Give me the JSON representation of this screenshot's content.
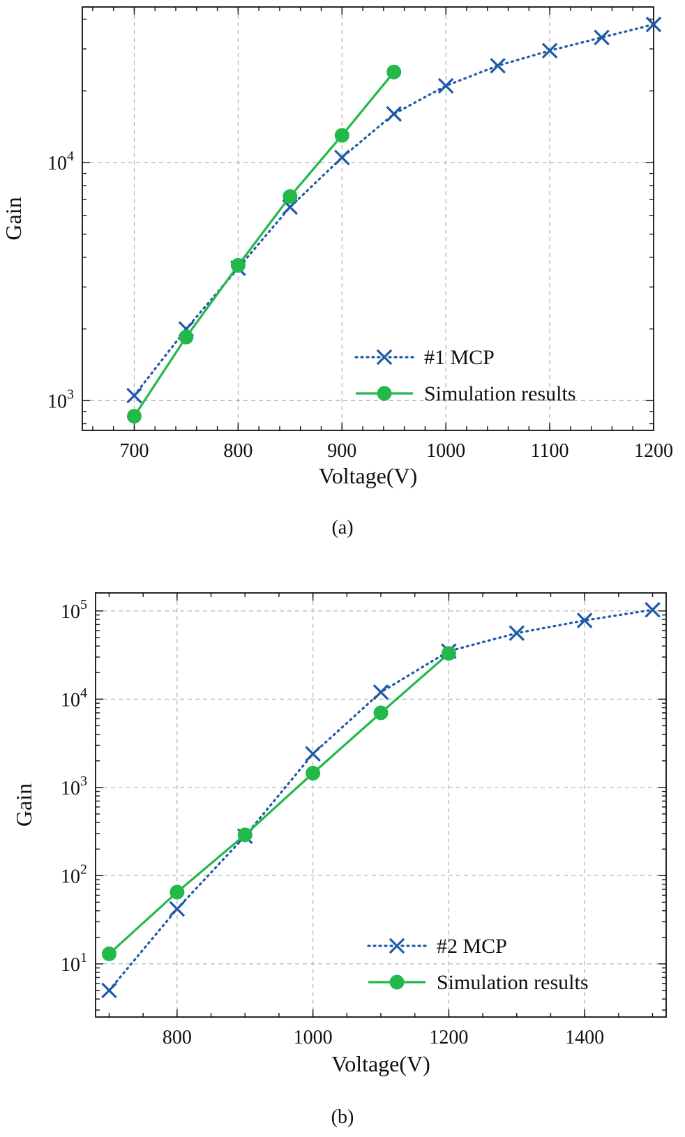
{
  "colors": {
    "mcp": "#1f5aa6",
    "sim": "#22b84a",
    "grid": "#b0b0b0",
    "axis": "#111111"
  },
  "chart_data": [
    {
      "type": "line",
      "caption": "(a)",
      "xlabel": "Voltage(V)",
      "ylabel": "Gain",
      "yscale": "log",
      "xlim": [
        650,
        1200
      ],
      "ylim": [
        750,
        45000
      ],
      "xticks": [
        700,
        800,
        900,
        1000,
        1100,
        1200
      ],
      "yticks": [
        {
          "value": 1000,
          "base": "10",
          "exp": "3"
        },
        {
          "value": 10000,
          "base": "10",
          "exp": "4"
        }
      ],
      "legend": "lower-right",
      "series": [
        {
          "name": "#1 MCP",
          "marker": "x",
          "style": "dotted",
          "color": "#1f5aa6",
          "x": [
            700,
            750,
            800,
            850,
            900,
            950,
            1000,
            1050,
            1100,
            1150,
            1200
          ],
          "y": [
            1050,
            2000,
            3600,
            6500,
            10500,
            16000,
            21000,
            25500,
            29500,
            33500,
            38000
          ]
        },
        {
          "name": "Simulation results",
          "marker": "o",
          "style": "solid",
          "color": "#22b84a",
          "x": [
            700,
            750,
            800,
            850,
            900,
            950
          ],
          "y": [
            860,
            1850,
            3700,
            7200,
            13000,
            24000
          ]
        }
      ]
    },
    {
      "type": "line",
      "caption": "(b)",
      "xlabel": "Voltage(V)",
      "ylabel": "Gain",
      "yscale": "log",
      "xlim": [
        680,
        1520
      ],
      "ylim": [
        2.5,
        160000
      ],
      "xticks": [
        800,
        1000,
        1200,
        1400
      ],
      "yticks": [
        {
          "value": 10,
          "base": "10",
          "exp": "1"
        },
        {
          "value": 100,
          "base": "10",
          "exp": "2"
        },
        {
          "value": 1000,
          "base": "10",
          "exp": "3"
        },
        {
          "value": 10000,
          "base": "10",
          "exp": "4"
        },
        {
          "value": 100000,
          "base": "10",
          "exp": "5"
        }
      ],
      "legend": "lower-right",
      "series": [
        {
          "name": "#2 MCP",
          "marker": "x",
          "style": "dotted",
          "color": "#1f5aa6",
          "x": [
            700,
            800,
            900,
            1000,
            1100,
            1200,
            1300,
            1400,
            1500
          ],
          "y": [
            5,
            42,
            280,
            2400,
            12000,
            35000,
            56000,
            78000,
            103000
          ]
        },
        {
          "name": "Simulation results",
          "marker": "o",
          "style": "solid",
          "color": "#22b84a",
          "x": [
            700,
            800,
            900,
            1000,
            1100,
            1200
          ],
          "y": [
            13,
            65,
            290,
            1450,
            7000,
            33000
          ]
        }
      ]
    }
  ]
}
